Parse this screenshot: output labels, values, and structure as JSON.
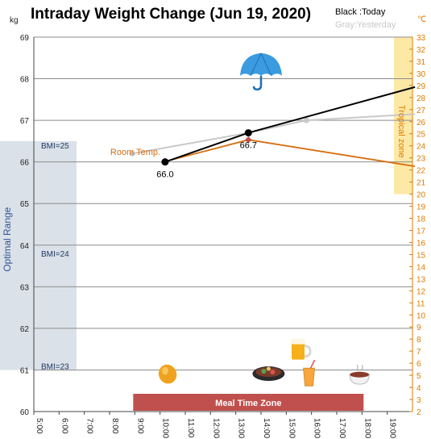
{
  "chart_data": {
    "type": "line",
    "title": "Intraday Weight Change (Jun 19, 2020)",
    "legend": {
      "today": "Black :Today",
      "yesterday": "Gray:Yesterday",
      "placement": "top-right"
    },
    "y_left": {
      "unit": "kg",
      "min": 60,
      "max": 69,
      "ticks": [
        60,
        61,
        62,
        63,
        64,
        65,
        66,
        67,
        68,
        69
      ]
    },
    "y_right": {
      "unit": "℃",
      "min": 2,
      "max": 33,
      "ticks": [
        2,
        3,
        4,
        5,
        6,
        7,
        8,
        9,
        10,
        11,
        12,
        13,
        14,
        15,
        16,
        17,
        18,
        19,
        20,
        21,
        22,
        23,
        24,
        25,
        26,
        27,
        28,
        29,
        30,
        31,
        32,
        33
      ]
    },
    "x_axis": {
      "start_hour": 5,
      "end_hour": 20,
      "tick_labels": [
        "5:00",
        "6:00",
        "7:00",
        "8:00",
        "9:00",
        "10:00",
        "11:00",
        "12:00",
        "13:00",
        "14:00",
        "15:00",
        "16:00",
        "17:00",
        "18:00",
        "19:00"
      ]
    },
    "optimal_range": {
      "label": "Optimal Range",
      "bmi_labels": [
        {
          "text": "BMI=25",
          "kg": 66.4
        },
        {
          "text": "BMI=24",
          "kg": 63.8
        },
        {
          "text": "BMI=23",
          "kg": 61.1
        }
      ],
      "kg_min": 61,
      "kg_max": 66.5
    },
    "tropical_zone": {
      "label": "Tropical zone",
      "temp_min": 20,
      "temp_max": 33
    },
    "meal_time_zone": {
      "label": "Meal Time Zone",
      "start_hour": 9,
      "end_hour": 18
    },
    "series": [
      {
        "name": "Today",
        "color": "#000000",
        "points": [
          {
            "x": 10.2,
            "y": 66.0
          },
          {
            "x": 13.5,
            "y": 66.7
          },
          {
            "x": 20.1,
            "y": 67.8
          }
        ],
        "labels": [
          {
            "x": 10.2,
            "y": 66.0,
            "text": "66.0"
          },
          {
            "x": 13.5,
            "y": 66.7,
            "text": "66.7"
          }
        ]
      },
      {
        "name": "Yesterday",
        "color": "#c9c9c9",
        "points": [
          {
            "x": 8.9,
            "y": 66.2
          },
          {
            "x": 13.5,
            "y": 66.7
          },
          {
            "x": 15.8,
            "y": 67.0
          },
          {
            "x": 20.1,
            "y": 67.15
          }
        ]
      },
      {
        "name": "Room Temp.",
        "color": "#d86d10",
        "temp_points": [
          {
            "x": 10.2,
            "t": 22.7
          },
          {
            "x": 13.5,
            "t": 24.5
          },
          {
            "x": 20.1,
            "t": 22.3
          }
        ]
      }
    ],
    "icons": [
      {
        "name": "umbrella-icon",
        "x": 14.0,
        "kg": 68.15
      },
      {
        "name": "mango-icon",
        "x": 10.3,
        "kg": 60.9
      },
      {
        "name": "hotpot-icon",
        "x": 14.3,
        "kg": 60.95
      },
      {
        "name": "beer-icon",
        "x": 15.5,
        "kg": 61.5
      },
      {
        "name": "juice-icon",
        "x": 15.9,
        "kg": 60.85
      },
      {
        "name": "soup-bowl-icon",
        "x": 17.9,
        "kg": 60.85
      }
    ]
  }
}
